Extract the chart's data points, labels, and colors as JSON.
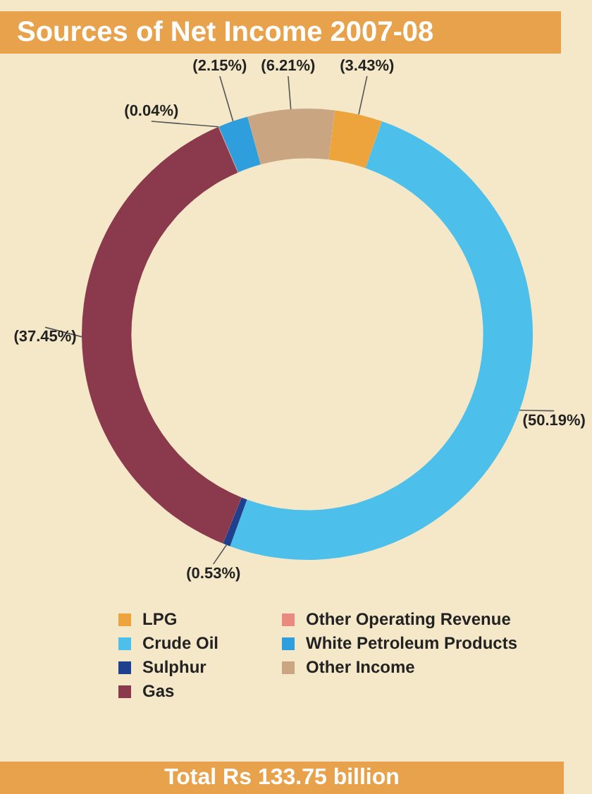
{
  "chart_data": {
    "type": "donut",
    "title": "Sources of Net Income 2007-08",
    "categories": [
      "LPG",
      "Crude Oil",
      "Sulphur",
      "Gas",
      "Other Operating Revenue",
      "White Petroleum Products",
      "Other Income"
    ],
    "values": [
      3.43,
      50.19,
      0.53,
      37.45,
      0.04,
      2.15,
      6.21
    ],
    "value_labels": [
      "(3.43%)",
      "(50.19%)",
      "(0.53%)",
      "(37.45%)",
      "(0.04%)",
      "(2.15%)",
      "(6.21%)"
    ],
    "colors": [
      "#eea43c",
      "#4cc0ea",
      "#1f3f8f",
      "#8a3a4c",
      "#e88a80",
      "#2e9fdc",
      "#c9a582"
    ],
    "legend": "bottom",
    "annotations": [
      "Total Rs 133.75 billion"
    ]
  }
}
